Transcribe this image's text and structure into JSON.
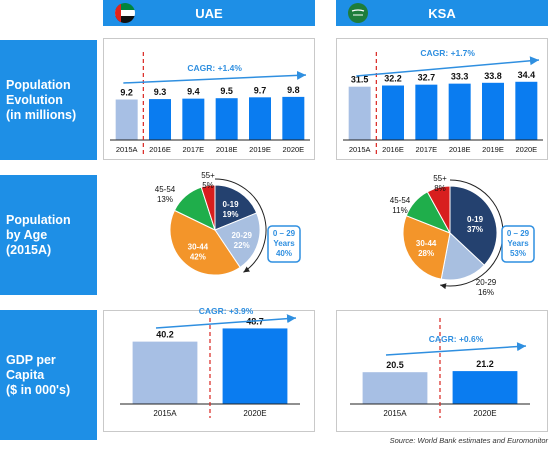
{
  "headers": {
    "uae": "UAE",
    "ksa": "KSA"
  },
  "row_labels": {
    "population": [
      "Population",
      "Evolution",
      "(in millions)"
    ],
    "age": [
      "Population",
      "by Age",
      "(2015A)"
    ],
    "gdp": [
      "GDP per",
      "Capita",
      "($ in 000's)"
    ]
  },
  "source": "Source: World Bank estimates and Euromonitor",
  "colors": {
    "blue": "#0a7cf0",
    "light_blue": "#a7bfe4",
    "header": "#1e8fe6",
    "cagr": "#2f8fe0",
    "dashed": "#d9241f"
  },
  "chart_data": [
    {
      "id": "uae_pop",
      "type": "bar",
      "categories": [
        "2015A",
        "2016E",
        "2017E",
        "2018E",
        "2019E",
        "2020E"
      ],
      "values": [
        9.2,
        9.3,
        9.4,
        9.5,
        9.7,
        9.8
      ],
      "value_labels": [
        "9.2",
        "9.3",
        "9.4",
        "9.5",
        "9.7",
        "9.8"
      ],
      "cagr": "CAGR: +1.4%",
      "ylim": [
        0,
        20
      ]
    },
    {
      "id": "ksa_pop",
      "type": "bar",
      "categories": [
        "2015A",
        "2016E",
        "2017E",
        "2018E",
        "2019E",
        "2020E"
      ],
      "values": [
        31.5,
        32.2,
        32.7,
        33.3,
        33.8,
        34.4
      ],
      "value_labels": [
        "31.5",
        "32.2",
        "32.7",
        "33.3",
        "33.8",
        "34.4"
      ],
      "cagr": "CAGR: +1.7%",
      "ylim": [
        0,
        52
      ]
    },
    {
      "id": "uae_age",
      "type": "pie",
      "slices": [
        {
          "label": "0-19",
          "value": 19,
          "pct": "19%",
          "color": "#24416f"
        },
        {
          "label": "20-29",
          "value": 22,
          "pct": "22%",
          "color": "#a8bfe0"
        },
        {
          "label": "30-44",
          "value": 42,
          "pct": "42%",
          "color": "#f3952a"
        },
        {
          "label": "45-54",
          "value": 13,
          "pct": "13%",
          "color": "#1fae4b"
        },
        {
          "label": "55+",
          "value": 5,
          "pct": "5%",
          "color": "#d81e1e"
        }
      ],
      "callout": {
        "range": "0 – 29",
        "word": "Years",
        "pct": "40%"
      }
    },
    {
      "id": "ksa_age",
      "type": "pie",
      "slices": [
        {
          "label": "0-19",
          "value": 37,
          "pct": "37%",
          "color": "#24416f"
        },
        {
          "label": "20-29",
          "value": 16,
          "pct": "16%",
          "color": "#a8bfe0"
        },
        {
          "label": "30-44",
          "value": 28,
          "pct": "28%",
          "color": "#f3952a"
        },
        {
          "label": "45-54",
          "value": 11,
          "pct": "11%",
          "color": "#1fae4b"
        },
        {
          "label": "55+",
          "value": 8,
          "pct": "8%",
          "color": "#d81e1e"
        }
      ],
      "callout": {
        "range": "0 – 29",
        "word": "Years",
        "pct": "53%"
      }
    },
    {
      "id": "uae_gdp",
      "type": "bar",
      "categories": [
        "2015A",
        "2020E"
      ],
      "values": [
        40.2,
        48.7
      ],
      "value_labels": [
        "40.2",
        "48.7"
      ],
      "cagr": "CAGR: +3.9%",
      "ylim": [
        0,
        58
      ]
    },
    {
      "id": "ksa_gdp",
      "type": "bar",
      "categories": [
        "2015A",
        "2020E"
      ],
      "values": [
        20.5,
        21.2
      ],
      "value_labels": [
        "20.5",
        "21.2"
      ],
      "cagr": "CAGR: +0.6%",
      "ylim": [
        0,
        58
      ]
    }
  ]
}
